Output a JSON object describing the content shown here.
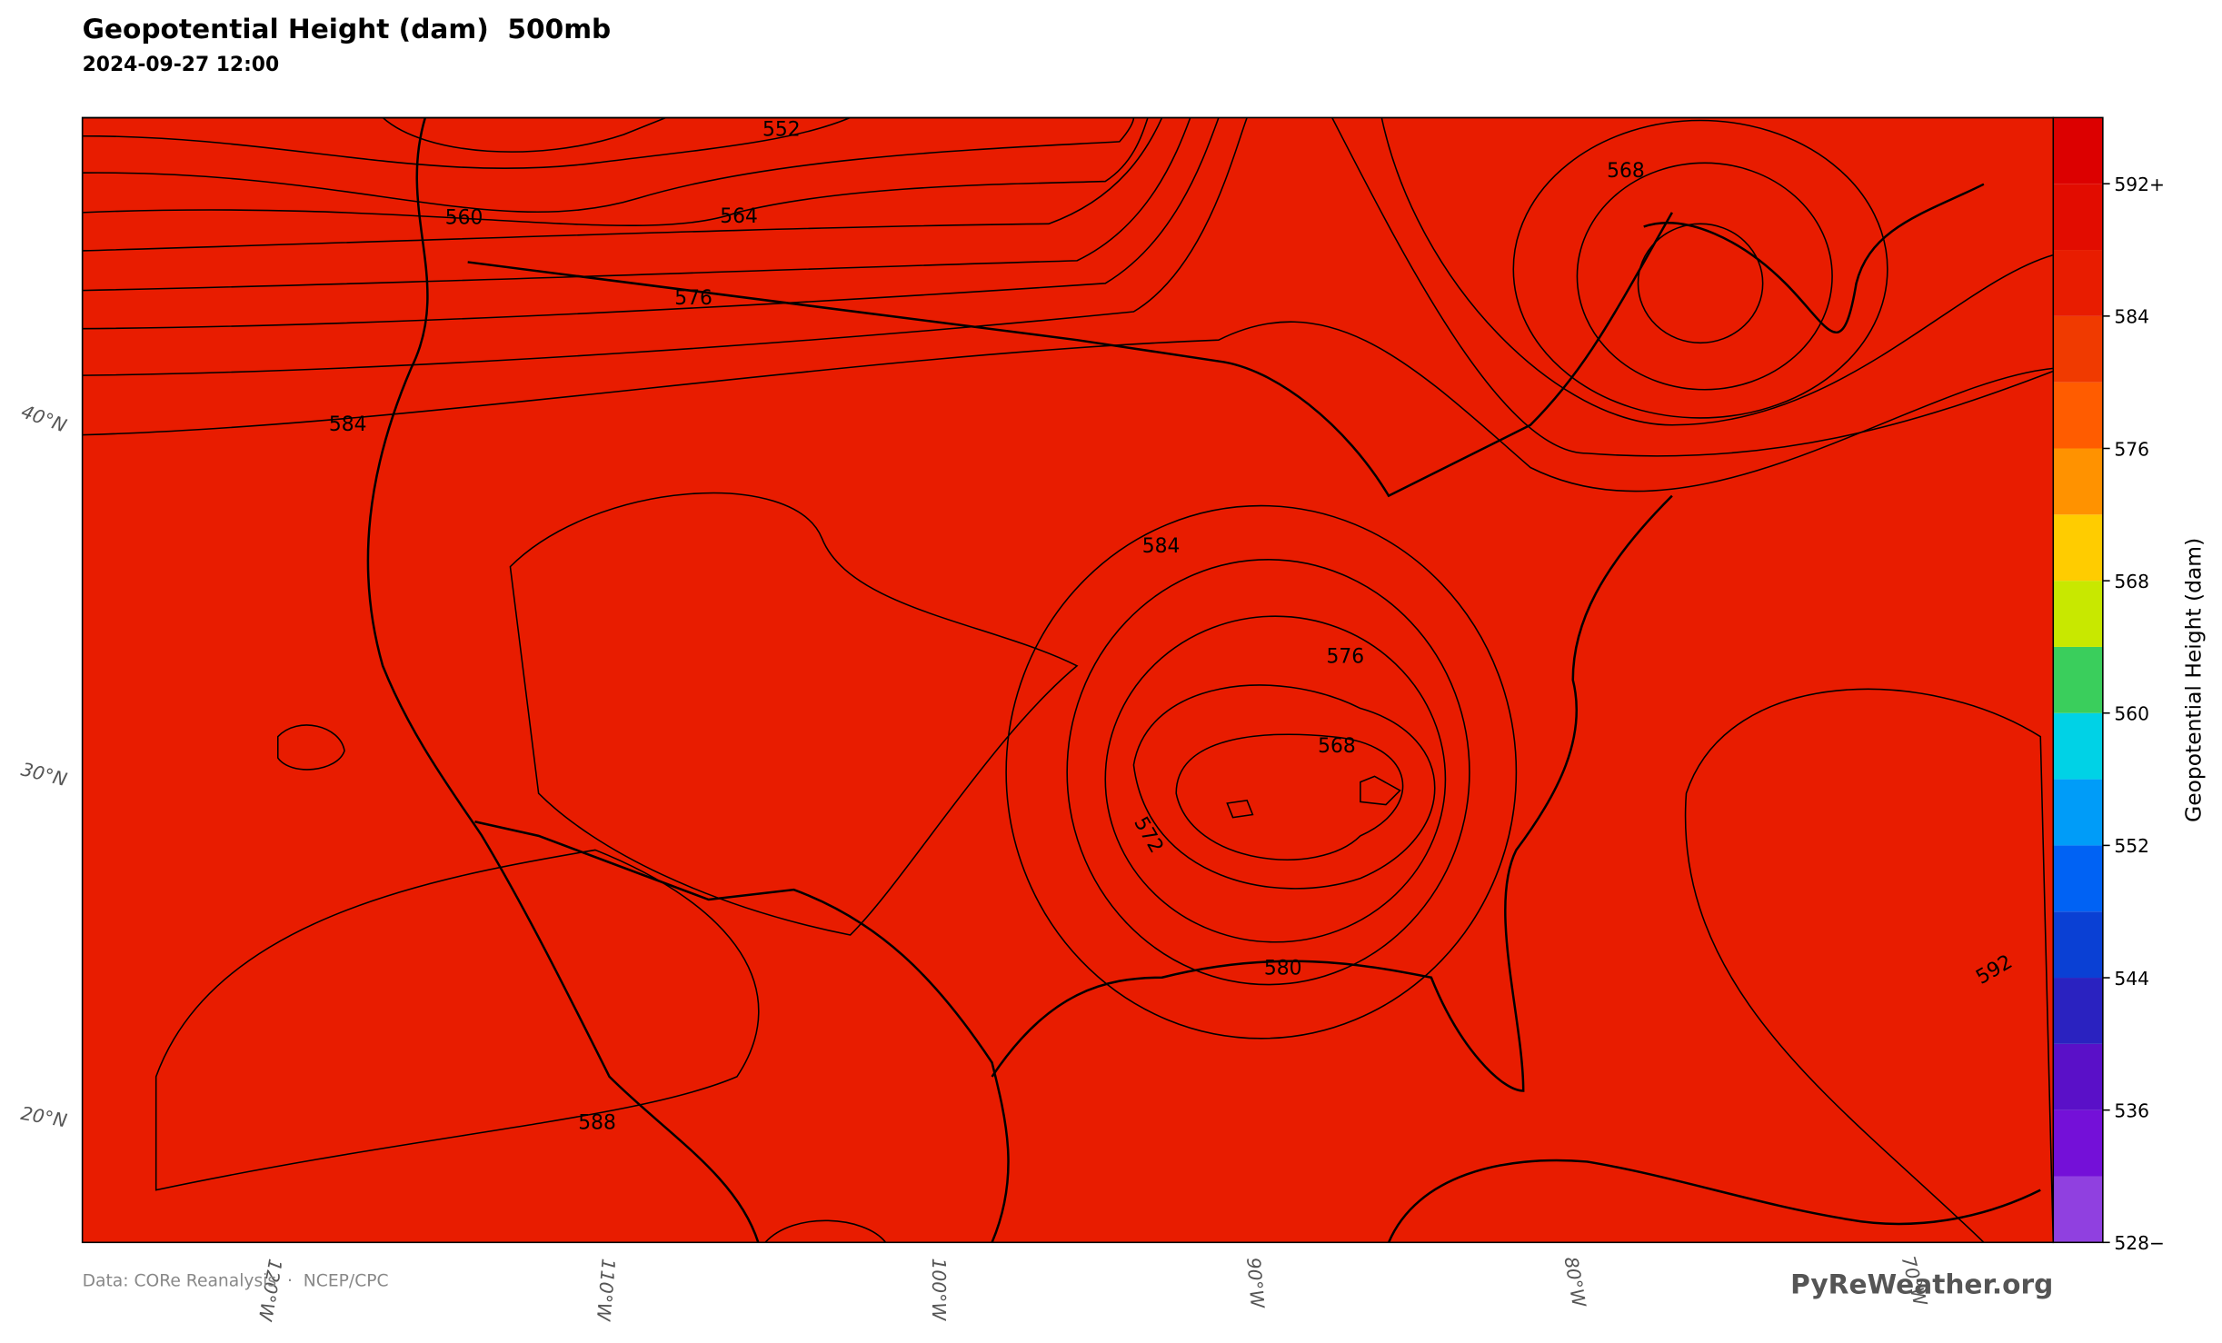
{
  "header": {
    "title": "Geopotential Height (dam)  500mb",
    "subtitle": "2024-09-27 12:00"
  },
  "map": {
    "latitude_labels": [
      "40°N",
      "30°N",
      "20°N"
    ],
    "longitude_labels": [
      "120°W",
      "110°W",
      "100°W",
      "90°W",
      "80°W",
      "70°W"
    ],
    "contour_labels": [
      552,
      560,
      564,
      576,
      584,
      568,
      584,
      576,
      568,
      572,
      580,
      592,
      588
    ]
  },
  "colorbar": {
    "label": "Geopotential Height (dam)",
    "bounds": [
      528,
      532,
      536,
      540,
      544,
      548,
      552,
      556,
      560,
      564,
      568,
      572,
      576,
      580,
      584,
      588,
      592,
      596
    ],
    "colors": [
      "#9040e0",
      "#7410d8",
      "#5a10c8",
      "#2a22c0",
      "#0a40d4",
      "#0062f4",
      "#009cf8",
      "#00d2e6",
      "#3ace5c",
      "#c8e800",
      "#ffcc00",
      "#ff9200",
      "#ff5c00",
      "#f03a00",
      "#e81c00",
      "#e20c00",
      "#dc0000"
    ],
    "ticks": [
      {
        "value": 528,
        "label": "528−"
      },
      536,
      544,
      552,
      560,
      568,
      576,
      584,
      {
        "value": 592,
        "label": "592+"
      }
    ]
  },
  "footer": {
    "source": "Data: CORe Reanalysis  ·  NCEP/CPC",
    "brand": "PyReWeather.org"
  }
}
